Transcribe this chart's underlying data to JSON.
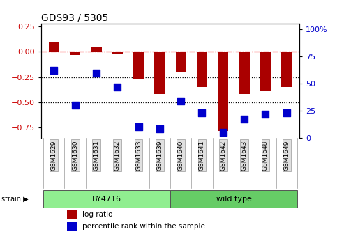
{
  "title": "GDS93 / 5305",
  "samples": [
    "GSM1629",
    "GSM1630",
    "GSM1631",
    "GSM1632",
    "GSM1633",
    "GSM1639",
    "GSM1640",
    "GSM1641",
    "GSM1642",
    "GSM1643",
    "GSM1648",
    "GSM1649"
  ],
  "log_ratio": [
    0.09,
    -0.03,
    0.05,
    -0.02,
    -0.27,
    -0.42,
    -0.2,
    -0.35,
    -0.78,
    -0.42,
    -0.38,
    -0.35
  ],
  "percentile_rank": [
    62,
    30,
    60,
    47,
    10,
    8,
    34,
    23,
    5,
    17,
    22,
    23
  ],
  "strain_groups": [
    {
      "label": "BY4716",
      "start": 0,
      "end": 5,
      "color": "#90EE90"
    },
    {
      "label": "wild type",
      "start": 6,
      "end": 11,
      "color": "#66CC66"
    }
  ],
  "bar_color": "#AA0000",
  "dot_color": "#0000CC",
  "ylim_left": [
    -0.85,
    0.28
  ],
  "ylim_right": [
    0,
    105.6
  ],
  "yticks_left": [
    0.25,
    0.0,
    -0.25,
    -0.5,
    -0.75
  ],
  "yticks_right": [
    100,
    75,
    50,
    25,
    0
  ],
  "hlines": [
    0.0,
    -0.25,
    -0.5
  ],
  "hline_styles": [
    "dashdot",
    "dotted",
    "dotted"
  ],
  "hline_colors": [
    "red",
    "black",
    "black"
  ],
  "background_color": "#ffffff",
  "tick_label_color_left": "#CC0000",
  "tick_label_color_right": "#0000CC",
  "dot_size": 45,
  "bar_width": 0.5
}
